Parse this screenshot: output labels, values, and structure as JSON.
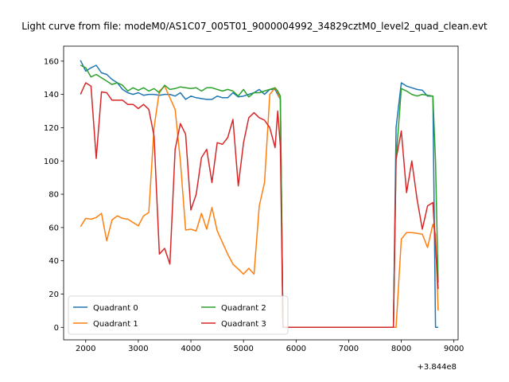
{
  "chart_data": {
    "type": "line",
    "title": "Light curve from file: modeM0/AS1C07_005T01_9000004992_34829cztM0_level2_quad_clean.evt",
    "xlabel": "",
    "ylabel": "",
    "x_offset_label": "+3.844e8",
    "xlim": [
      1580,
      9080
    ],
    "ylim": [
      -7.5,
      169
    ],
    "x_ticks": [
      1000,
      2000,
      3000,
      4000,
      5000,
      6000,
      7000,
      8000,
      9000
    ],
    "x_tick_labels": [
      "1000",
      "2000",
      "3000",
      "4000",
      "5000",
      "6000",
      "7000",
      "8000",
      "9000"
    ],
    "y_ticks": [
      0,
      20,
      40,
      60,
      80,
      100,
      120,
      140,
      160
    ],
    "y_tick_labels": [
      "0",
      "20",
      "40",
      "60",
      "80",
      "100",
      "120",
      "140",
      "160"
    ],
    "grid": false,
    "legend": {
      "placement": "lower-left",
      "columns": 2
    },
    "x": [
      1900,
      2000,
      2100,
      2200,
      2300,
      2400,
      2500,
      2600,
      2700,
      2800,
      2900,
      3000,
      3100,
      3200,
      3300,
      3400,
      3500,
      3600,
      3700,
      3800,
      3900,
      4000,
      4100,
      4200,
      4300,
      4400,
      4500,
      4600,
      4700,
      4800,
      4900,
      5000,
      5100,
      5200,
      5300,
      5400,
      5500,
      5600,
      5650,
      5700,
      5750,
      5800,
      7800,
      7850,
      7900,
      8000,
      8100,
      8200,
      8300,
      8400,
      8500,
      8600,
      8650,
      8700
    ],
    "series": [
      {
        "name": "Quadrant 0",
        "color": "#1f77b4",
        "values": [
          160.5,
          154,
          156,
          157.5,
          153,
          152,
          149,
          147,
          143,
          141,
          140,
          141,
          139.5,
          140,
          140,
          139.5,
          140,
          140,
          139,
          141,
          137,
          139,
          138,
          137.5,
          137,
          137,
          139,
          138,
          138,
          141,
          138.5,
          139,
          140,
          141,
          143,
          140,
          143,
          143,
          140,
          137,
          0,
          0,
          0,
          0,
          120,
          147,
          145,
          144,
          143,
          142.5,
          139,
          139,
          0,
          0
        ]
      },
      {
        "name": "Quadrant 1",
        "color": "#ff7f0e",
        "values": [
          60.5,
          65.5,
          65,
          66,
          68.5,
          52,
          64.5,
          67,
          65.5,
          65,
          63,
          61,
          67,
          69,
          120,
          142,
          145,
          138,
          131,
          100,
          58.5,
          59,
          58,
          68.5,
          59,
          72,
          58,
          51,
          44,
          38,
          35,
          32,
          35.5,
          32,
          73,
          87,
          140,
          144,
          141,
          137,
          0,
          0,
          0,
          0,
          0,
          53,
          57,
          57,
          56.5,
          56,
          48,
          62,
          56,
          10
        ]
      },
      {
        "name": "Quadrant 2",
        "color": "#2ca02c",
        "values": [
          157.5,
          156,
          150.5,
          152,
          150,
          148,
          146,
          147,
          145.5,
          142,
          144,
          142.5,
          144,
          142,
          143.5,
          141,
          145.5,
          143,
          143.5,
          144.5,
          144,
          143.5,
          144,
          142,
          144,
          144,
          143,
          142,
          143,
          142,
          139,
          143,
          138.5,
          141,
          141,
          142,
          143,
          144,
          142,
          139,
          0,
          0,
          0,
          0,
          101,
          143.5,
          142,
          140,
          139,
          140,
          139.5,
          139,
          100,
          27
        ]
      },
      {
        "name": "Quadrant 3",
        "color": "#d62728",
        "values": [
          140,
          147,
          145,
          101.5,
          141.5,
          141,
          136.5,
          136.5,
          136.5,
          134,
          134,
          131.5,
          134,
          131,
          115,
          44,
          47.5,
          38,
          107,
          122.5,
          116,
          70.5,
          80,
          102,
          107,
          87,
          111,
          110,
          114,
          125,
          85,
          111,
          126,
          129,
          126,
          124.5,
          120,
          108,
          130,
          109,
          0,
          0,
          0,
          0,
          101,
          118,
          81,
          100,
          77,
          59,
          73,
          75,
          49,
          23
        ]
      }
    ]
  }
}
